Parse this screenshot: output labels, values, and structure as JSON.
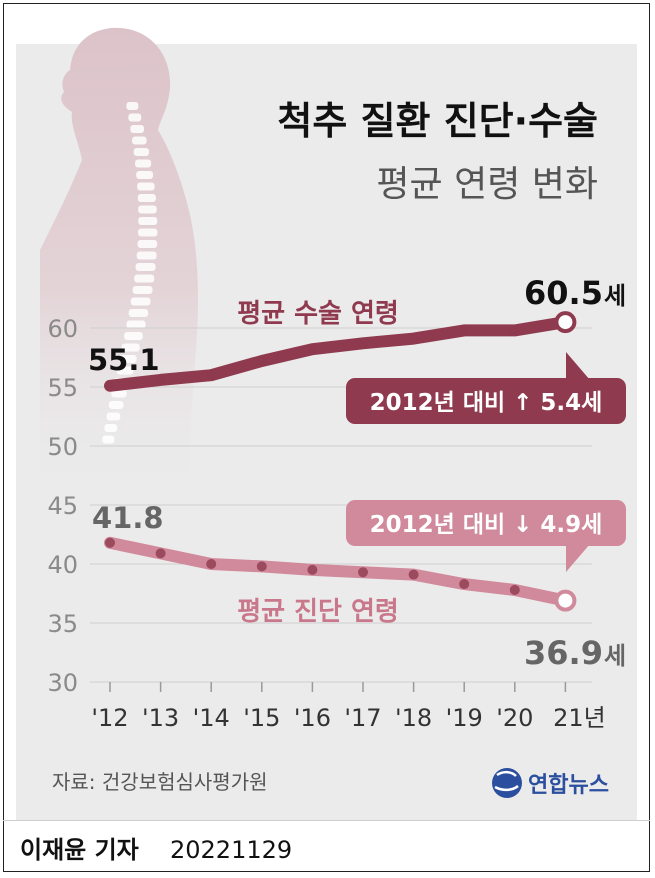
{
  "title_line1": "척추 질환 진단·수술",
  "title_line2": "평균 연령 변화",
  "source": "자료: 건강보험심사평가원",
  "logo_text": "연합뉴스",
  "byline": "이재윤 기자",
  "date": "20221129",
  "colors": {
    "surgery": "#8f3a4f",
    "diagnosis": "#d18a9c",
    "diagnosis_label": "#c9788c",
    "panel": "#ebebeb",
    "logo": "#2b4f9e"
  },
  "chart_data": {
    "type": "line",
    "title": "척추 질환 진단·수술",
    "subtitle": "평균 연령 변화",
    "categories": [
      "'12",
      "'13",
      "'14",
      "'15",
      "'16",
      "'17",
      "'18",
      "'19",
      "'20",
      "21년"
    ],
    "ylim": [
      30,
      62
    ],
    "yticks": [
      "30",
      "35",
      "40",
      "45",
      "50",
      "55",
      "60"
    ],
    "grid": true,
    "series": [
      {
        "name": "평균 수술 연령",
        "values": [
          55.1,
          55.6,
          56.0,
          57.2,
          58.2,
          58.7,
          59.1,
          59.8,
          59.8,
          60.5
        ],
        "start_label": "55.1",
        "end_label": "60.5",
        "end_unit": "세",
        "change_label": "2012년 대비 ↑ 5.4세"
      },
      {
        "name": "평균 진단 연령",
        "values": [
          41.8,
          40.9,
          40.0,
          39.8,
          39.5,
          39.3,
          39.1,
          38.3,
          37.8,
          36.9
        ],
        "start_label": "41.8",
        "end_label": "36.9",
        "end_unit": "세",
        "change_label": "2012년 대비 ↓ 4.9세"
      }
    ]
  }
}
